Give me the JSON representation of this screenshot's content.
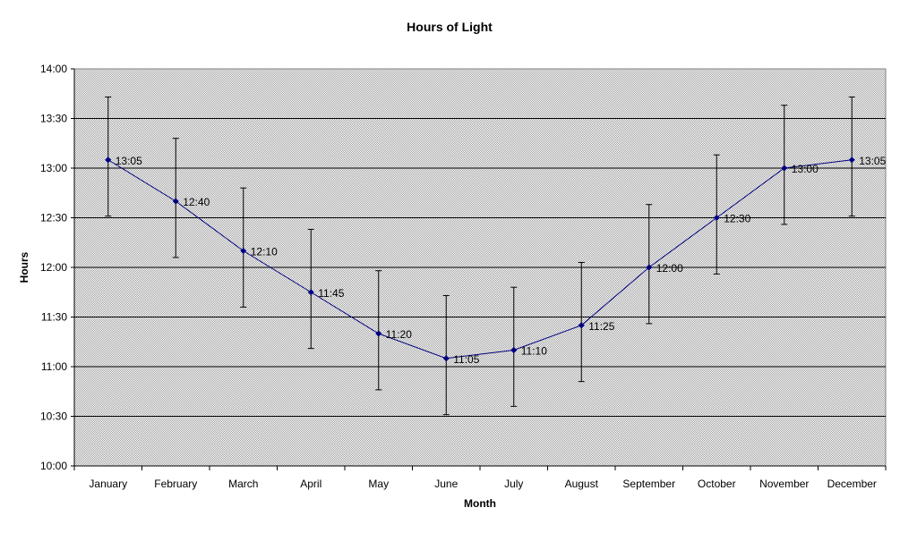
{
  "chart_data": {
    "type": "line",
    "title": "Hours of Light",
    "xlabel": "Month",
    "ylabel": "Hours",
    "categories": [
      "January",
      "February",
      "March",
      "April",
      "May",
      "June",
      "July",
      "August",
      "September",
      "October",
      "November",
      "December"
    ],
    "y_tick_labels": [
      "10:00",
      "10:30",
      "11:00",
      "11:30",
      "12:00",
      "12:30",
      "13:00",
      "13:30",
      "14:00"
    ],
    "ylim_minutes": [
      600,
      840
    ],
    "y_unit": "minutes",
    "series": [
      {
        "values": [
          785,
          760,
          730,
          705,
          680,
          665,
          670,
          685,
          720,
          750,
          780,
          785
        ],
        "data_labels": [
          "13:05",
          "12:40",
          "12:10",
          "11:45",
          "11:20",
          "11:05",
          "11:10",
          "11:25",
          "12:00",
          "12:30",
          "13:00",
          "13:05"
        ],
        "error_low": [
          751,
          726,
          696,
          671,
          646,
          631,
          636,
          651,
          686,
          716,
          746,
          751
        ],
        "error_high": [
          823,
          798,
          768,
          743,
          718,
          703,
          708,
          723,
          758,
          788,
          818,
          823
        ],
        "color": "#000080"
      }
    ],
    "grid": true,
    "legend": "none",
    "plot_background": "#c0c0c0"
  }
}
